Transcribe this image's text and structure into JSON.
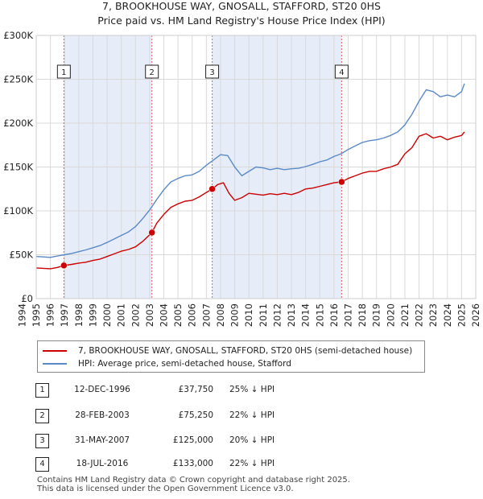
{
  "chart_data": {
    "type": "line",
    "title": "7, BROOKHOUSE WAY, GNOSALL, STAFFORD, ST20 0HS",
    "subtitle": "Price paid vs. HM Land Registry's House Price Index (HPI)",
    "xlim": [
      1995.0,
      2026.0
    ],
    "ylim": [
      0,
      300000
    ],
    "x_ticks": [
      1994,
      1995,
      1996,
      1997,
      1998,
      1999,
      2000,
      2001,
      2002,
      2003,
      2004,
      2005,
      2006,
      2007,
      2008,
      2009,
      2010,
      2011,
      2012,
      2013,
      2014,
      2015,
      2016,
      2017,
      2018,
      2019,
      2020,
      2021,
      2022,
      2023,
      2024,
      2025,
      2026
    ],
    "y_ticks": [
      0,
      50000,
      100000,
      150000,
      200000,
      250000,
      300000
    ],
    "y_tick_labels": [
      "£0",
      "£50K",
      "£100K",
      "£150K",
      "£200K",
      "£250K",
      "£300K"
    ],
    "shaded_ranges": [
      [
        1996.95,
        2003.16
      ],
      [
        2007.41,
        2016.54
      ]
    ],
    "series": [
      {
        "name": "7, BROOKHOUSE WAY, GNOSALL, STAFFORD, ST20 0HS (semi-detached house)",
        "color": "#cc0000",
        "x": [
          1995.0,
          1995.5,
          1996.0,
          1996.5,
          1996.95,
          1997.5,
          1998.0,
          1998.5,
          1999.0,
          1999.5,
          2000.0,
          2000.5,
          2001.0,
          2001.5,
          2002.0,
          2002.5,
          2003.16,
          2003.5,
          2004.0,
          2004.5,
          2005.0,
          2005.5,
          2006.0,
          2006.5,
          2007.0,
          2007.41,
          2007.8,
          2008.2,
          2008.6,
          2009.0,
          2009.5,
          2010.0,
          2010.5,
          2011.0,
          2011.5,
          2012.0,
          2012.5,
          2013.0,
          2013.5,
          2014.0,
          2014.5,
          2015.0,
          2015.5,
          2016.0,
          2016.54,
          2017.0,
          2017.5,
          2018.0,
          2018.5,
          2019.0,
          2019.5,
          2020.0,
          2020.5,
          2021.0,
          2021.5,
          2022.0,
          2022.5,
          2023.0,
          2023.5,
          2024.0,
          2024.5,
          2025.0,
          2025.2
        ],
        "values": [
          35000,
          34500,
          34000,
          35500,
          37750,
          39000,
          40500,
          41500,
          43500,
          45000,
          48000,
          51000,
          54000,
          56000,
          59000,
          65000,
          75250,
          86000,
          96000,
          104000,
          108000,
          111000,
          112000,
          116000,
          121000,
          125000,
          130000,
          132000,
          120000,
          112000,
          115000,
          120000,
          119000,
          118000,
          119500,
          118500,
          120000,
          118500,
          121000,
          125000,
          126000,
          128000,
          130000,
          132000,
          133000,
          137000,
          140000,
          143000,
          145000,
          145000,
          148000,
          150000,
          153000,
          165000,
          172000,
          185000,
          188000,
          183000,
          185000,
          181000,
          184000,
          186000,
          190000
        ]
      },
      {
        "name": "HPI: Average price, semi-detached house, Stafford",
        "color": "#5a8ac6",
        "x": [
          1995.0,
          1995.5,
          1996.0,
          1996.5,
          1997.0,
          1997.5,
          1998.0,
          1998.5,
          1999.0,
          1999.5,
          2000.0,
          2000.5,
          2001.0,
          2001.5,
          2002.0,
          2002.5,
          2003.0,
          2003.5,
          2004.0,
          2004.5,
          2005.0,
          2005.5,
          2006.0,
          2006.5,
          2007.0,
          2007.5,
          2008.0,
          2008.5,
          2009.0,
          2009.5,
          2010.0,
          2010.5,
          2011.0,
          2011.5,
          2012.0,
          2012.5,
          2013.0,
          2013.5,
          2014.0,
          2014.5,
          2015.0,
          2015.5,
          2016.0,
          2016.5,
          2017.0,
          2017.5,
          2018.0,
          2018.5,
          2019.0,
          2019.5,
          2020.0,
          2020.5,
          2021.0,
          2021.5,
          2022.0,
          2022.5,
          2023.0,
          2023.5,
          2024.0,
          2024.5,
          2025.0,
          2025.2
        ],
        "values": [
          48000,
          47500,
          47000,
          48500,
          50000,
          51500,
          53500,
          55500,
          58000,
          60500,
          64000,
          68000,
          72000,
          76000,
          82000,
          91000,
          101000,
          113000,
          124000,
          133000,
          137000,
          140000,
          141000,
          145000,
          152000,
          158000,
          164000,
          163000,
          150000,
          140000,
          145000,
          150000,
          149000,
          147000,
          148500,
          147000,
          148000,
          148500,
          150500,
          153000,
          156000,
          158000,
          162000,
          165000,
          170000,
          174000,
          178000,
          180000,
          181000,
          183000,
          186000,
          190000,
          198000,
          210000,
          225000,
          238000,
          236000,
          230000,
          232000,
          230000,
          236000,
          245000
        ]
      }
    ],
    "sales": [
      {
        "label": "1",
        "x": 1996.95,
        "price": 37750
      },
      {
        "label": "2",
        "x": 2003.16,
        "price": 75250
      },
      {
        "label": "3",
        "x": 2007.41,
        "price": 125000
      },
      {
        "label": "4",
        "x": 2016.54,
        "price": 133000
      }
    ]
  },
  "legend": {
    "property_label": "7, BROOKHOUSE WAY, GNOSALL, STAFFORD, ST20 0HS (semi-detached house)",
    "hpi_label": "HPI: Average price, semi-detached house, Stafford"
  },
  "sales_table": [
    {
      "num": "1",
      "date": "12-DEC-1996",
      "price": "£37,750",
      "hpi": "25% ↓ HPI"
    },
    {
      "num": "2",
      "date": "28-FEB-2003",
      "price": "£75,250",
      "hpi": "22% ↓ HPI"
    },
    {
      "num": "3",
      "date": "31-MAY-2007",
      "price": "£125,000",
      "hpi": "20% ↓ HPI"
    },
    {
      "num": "4",
      "date": "18-JUL-2016",
      "price": "£133,000",
      "hpi": "22% ↓ HPI"
    }
  ],
  "footer": {
    "line1": "Contains HM Land Registry data © Crown copyright and database right 2025.",
    "line2": "This data is licensed under the Open Government Licence v3.0."
  }
}
